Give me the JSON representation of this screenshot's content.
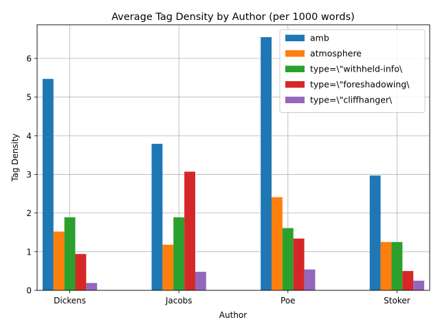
{
  "chart_data": {
    "type": "bar",
    "title": "Average Tag Density by Author (per 1000 words)",
    "xlabel": "Author",
    "ylabel": "Tag Density",
    "categories": [
      "Dickens",
      "Jacobs",
      "Poe",
      "Stoker"
    ],
    "ylim": [
      0,
      6.87
    ],
    "yticks": [
      0,
      1,
      2,
      3,
      4,
      5,
      6
    ],
    "grid": true,
    "legend_position": "top-right",
    "series": [
      {
        "name": "amb",
        "color": "#1f77b4",
        "values": [
          5.47,
          3.79,
          6.55,
          2.97
        ]
      },
      {
        "name": "atmosphere",
        "color": "#ff7f0e",
        "values": [
          1.52,
          1.18,
          2.41,
          1.25
        ]
      },
      {
        "name": "type=\\\"withheld-info\\",
        "color": "#2ca02c",
        "values": [
          1.89,
          1.89,
          1.61,
          1.25
        ]
      },
      {
        "name": "type=\\\"foreshadowing\\",
        "color": "#d62728",
        "values": [
          0.94,
          3.07,
          1.34,
          0.5
        ]
      },
      {
        "name": "type=\\\"cliffhanger\\",
        "color": "#9467bd",
        "values": [
          0.19,
          0.48,
          0.54,
          0.25
        ]
      }
    ]
  }
}
